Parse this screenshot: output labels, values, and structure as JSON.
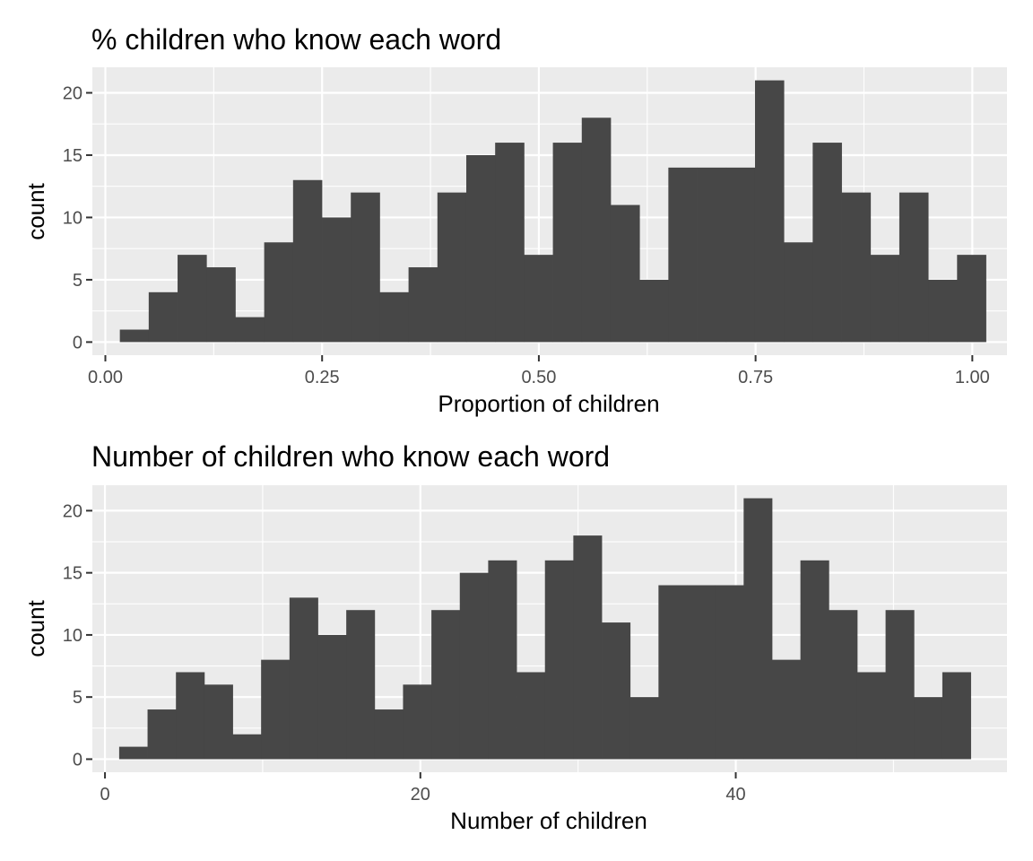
{
  "colors": {
    "panel_background": "#ebebeb",
    "grid_line": "#ffffff",
    "bar_fill": "#474747",
    "tick_text": "#4d4d4d",
    "title_text": "#000000"
  },
  "chart_data": [
    {
      "type": "bar",
      "histogram": true,
      "title": "% children who know each word",
      "xlabel": "Proportion of children",
      "ylabel": "count",
      "xlim": [
        -0.015,
        1.04
      ],
      "ylim": [
        -1.05,
        22.05
      ],
      "grid": true,
      "x_ticks": [
        0.0,
        0.25,
        0.5,
        0.75,
        1.0
      ],
      "x_tick_labels": [
        "0.00",
        "0.25",
        "0.50",
        "0.75",
        "1.00"
      ],
      "x_minor_ticks": [
        0.125,
        0.375,
        0.625,
        0.875
      ],
      "y_ticks": [
        0,
        5,
        10,
        15,
        20
      ],
      "y_tick_labels": [
        "0",
        "5",
        "10",
        "15",
        "20"
      ],
      "y_minor_ticks": [
        2.5,
        7.5,
        12.5,
        17.5
      ],
      "bin_start": 0.0167,
      "bin_width": 0.0333,
      "values": [
        1,
        4,
        7,
        6,
        2,
        8,
        13,
        10,
        12,
        4,
        6,
        12,
        15,
        16,
        7,
        16,
        18,
        11,
        5,
        14,
        14,
        14,
        21,
        8,
        16,
        12,
        7,
        12,
        5,
        7
      ]
    },
    {
      "type": "bar",
      "histogram": true,
      "title": "Number of children who know each word",
      "xlabel": "Number of children",
      "ylabel": "count",
      "xlim": [
        -0.8,
        57.2
      ],
      "ylim": [
        -1.05,
        22.05
      ],
      "grid": true,
      "x_ticks": [
        0,
        20,
        40
      ],
      "x_tick_labels": [
        "0",
        "20",
        "40"
      ],
      "x_minor_ticks": [
        10,
        30,
        50
      ],
      "y_ticks": [
        0,
        5,
        10,
        15,
        20
      ],
      "y_tick_labels": [
        "0",
        "5",
        "10",
        "15",
        "20"
      ],
      "y_minor_ticks": [
        2.5,
        7.5,
        12.5,
        17.5
      ],
      "bin_start": 0.9,
      "bin_width": 1.8,
      "values": [
        1,
        4,
        7,
        6,
        2,
        8,
        13,
        10,
        12,
        4,
        6,
        12,
        15,
        16,
        7,
        16,
        18,
        11,
        5,
        14,
        14,
        14,
        21,
        8,
        16,
        12,
        7,
        12,
        5,
        7
      ]
    }
  ]
}
